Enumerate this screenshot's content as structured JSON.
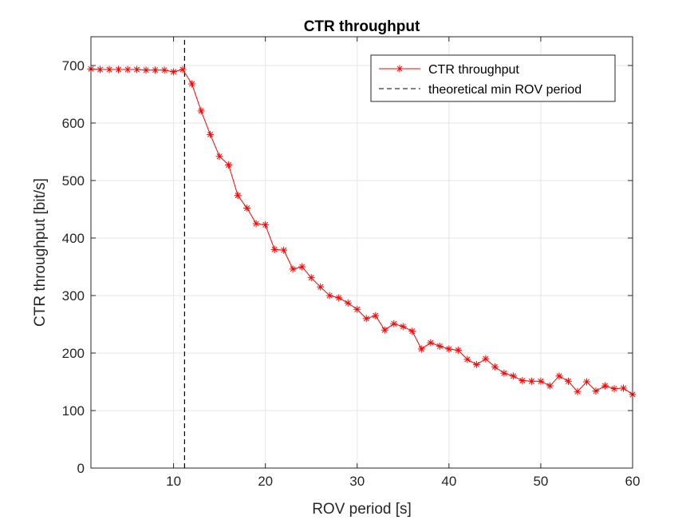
{
  "chart_data": {
    "type": "line",
    "title": "CTR throughput",
    "xlabel": "ROV period [s]",
    "ylabel": "CTR throughput [bit/s]",
    "xlim": [
      1,
      60
    ],
    "ylim": [
      0,
      750
    ],
    "xticks": [
      10,
      20,
      30,
      40,
      50,
      60
    ],
    "yticks": [
      0,
      100,
      200,
      300,
      400,
      500,
      600,
      700
    ],
    "grid": true,
    "legend_position": "top-right",
    "series": [
      {
        "name": "CTR throughput",
        "color": "#ff0000",
        "marker": "asterisk",
        "x": [
          1,
          2,
          3,
          4,
          5,
          6,
          7,
          8,
          9,
          10,
          11,
          12,
          13,
          14,
          15,
          16,
          17,
          18,
          19,
          20,
          21,
          22,
          23,
          24,
          25,
          26,
          27,
          28,
          29,
          30,
          31,
          32,
          33,
          34,
          35,
          36,
          37,
          38,
          39,
          40,
          41,
          42,
          43,
          44,
          45,
          46,
          47,
          48,
          49,
          50,
          51,
          52,
          53,
          54,
          55,
          56,
          57,
          58,
          59,
          60
        ],
        "y": [
          694,
          693,
          693,
          693,
          693,
          693,
          692,
          692,
          692,
          689,
          693,
          668,
          621,
          580,
          542,
          527,
          474,
          452,
          425,
          423,
          380,
          379,
          346,
          350,
          331,
          315,
          300,
          296,
          287,
          276,
          260,
          265,
          240,
          251,
          246,
          238,
          207,
          218,
          212,
          207,
          205,
          189,
          180,
          190,
          176,
          165,
          160,
          152,
          151,
          151,
          143,
          160,
          151,
          133,
          150,
          134,
          143,
          138,
          139,
          128
        ]
      },
      {
        "name": "theoretical min ROV period",
        "color": "#000000",
        "style": "dashed",
        "x": [
          11.2,
          11.2
        ],
        "y": [
          0,
          750
        ]
      }
    ]
  }
}
